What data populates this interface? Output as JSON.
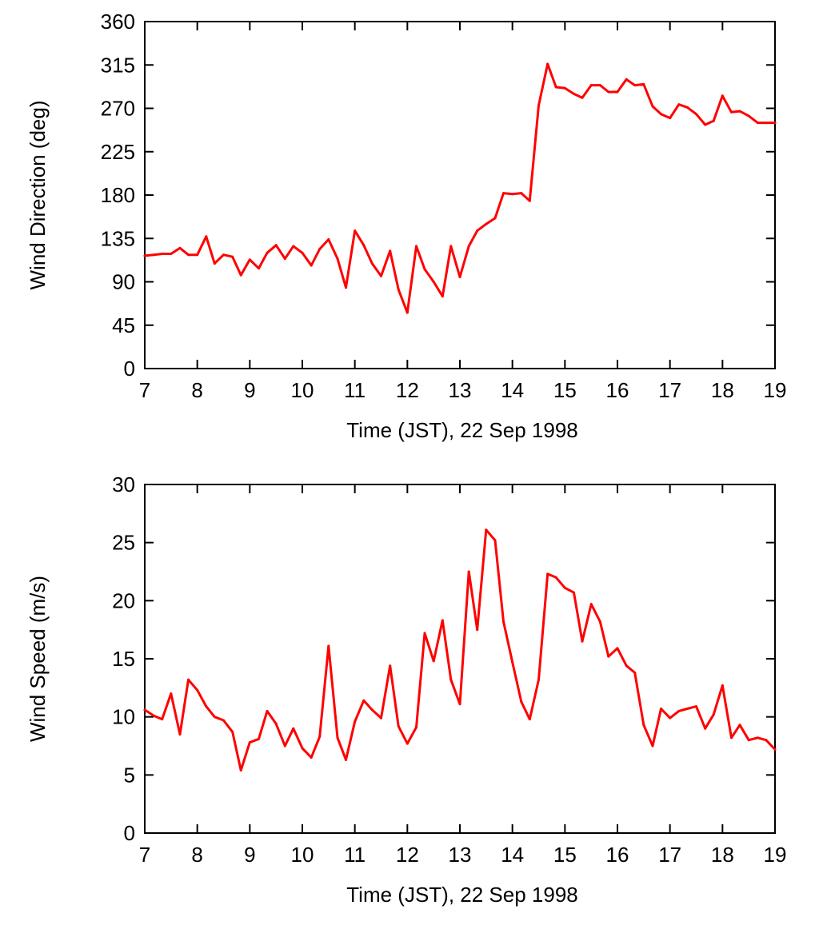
{
  "series_color": "#ff0000",
  "chart_data": [
    {
      "type": "line",
      "title": "",
      "xlabel": "Time (JST), 22 Sep 1998",
      "ylabel": "Wind Direction (deg)",
      "xlim": [
        7,
        19
      ],
      "ylim": [
        0,
        360
      ],
      "xticks": [
        7,
        8,
        9,
        10,
        11,
        12,
        13,
        14,
        15,
        16,
        17,
        18,
        19
      ],
      "yticks": [
        0,
        45,
        90,
        135,
        180,
        225,
        270,
        315,
        360
      ],
      "grid": false,
      "series": [
        {
          "name": "Wind Direction",
          "x": [
            7.0,
            7.17,
            7.33,
            7.5,
            7.67,
            7.83,
            8.0,
            8.17,
            8.33,
            8.5,
            8.67,
            8.83,
            9.0,
            9.17,
            9.33,
            9.5,
            9.67,
            9.83,
            10.0,
            10.17,
            10.33,
            10.5,
            10.67,
            10.83,
            11.0,
            11.17,
            11.33,
            11.5,
            11.67,
            11.83,
            12.0,
            12.17,
            12.33,
            12.5,
            12.67,
            12.83,
            13.0,
            13.17,
            13.33,
            13.5,
            13.67,
            13.83,
            14.0,
            14.17,
            14.33,
            14.5,
            14.67,
            14.83,
            15.0,
            15.17,
            15.33,
            15.5,
            15.67,
            15.83,
            16.0,
            16.17,
            16.33,
            16.5,
            16.67,
            16.83,
            17.0,
            17.17,
            17.33,
            17.5,
            17.67,
            17.83,
            18.0,
            18.17,
            18.33,
            18.5,
            18.67,
            18.83,
            19.0
          ],
          "values": [
            117,
            118,
            119,
            119,
            125,
            118,
            118,
            137,
            109,
            118,
            116,
            97,
            113,
            104,
            120,
            128,
            114,
            127,
            120,
            107,
            124,
            134,
            114,
            84,
            143,
            128,
            109,
            96,
            122,
            82,
            58,
            127,
            103,
            90,
            75,
            127,
            95,
            127,
            143,
            150,
            156,
            182,
            181,
            182,
            174,
            273,
            316,
            292,
            291,
            285,
            281,
            294,
            294,
            287,
            287,
            300,
            294,
            295,
            272,
            264,
            260,
            274,
            271,
            264,
            253,
            257,
            283,
            266,
            267,
            262,
            255,
            255,
            255
          ]
        }
      ]
    },
    {
      "type": "line",
      "title": "",
      "xlabel": "Time (JST), 22 Sep 1998",
      "ylabel": "Wind Speed (m/s)",
      "xlim": [
        7,
        19
      ],
      "ylim": [
        0,
        30
      ],
      "xticks": [
        7,
        8,
        9,
        10,
        11,
        12,
        13,
        14,
        15,
        16,
        17,
        18,
        19
      ],
      "yticks": [
        0,
        5,
        10,
        15,
        20,
        25,
        30
      ],
      "grid": false,
      "series": [
        {
          "name": "Wind Speed",
          "x": [
            7.0,
            7.17,
            7.33,
            7.5,
            7.67,
            7.83,
            8.0,
            8.17,
            8.33,
            8.5,
            8.67,
            8.83,
            9.0,
            9.17,
            9.33,
            9.5,
            9.67,
            9.83,
            10.0,
            10.17,
            10.33,
            10.5,
            10.67,
            10.83,
            11.0,
            11.17,
            11.33,
            11.5,
            11.67,
            11.83,
            12.0,
            12.17,
            12.33,
            12.5,
            12.67,
            12.83,
            13.0,
            13.17,
            13.33,
            13.5,
            13.67,
            13.83,
            14.0,
            14.17,
            14.33,
            14.5,
            14.67,
            14.83,
            15.0,
            15.17,
            15.33,
            15.5,
            15.67,
            15.83,
            16.0,
            16.17,
            16.33,
            16.5,
            16.67,
            16.83,
            17.0,
            17.17,
            17.33,
            17.5,
            17.67,
            17.83,
            18.0,
            18.17,
            18.33,
            18.5,
            18.67,
            18.83,
            19.0
          ],
          "values": [
            10.6,
            10.1,
            9.8,
            12.0,
            8.5,
            13.2,
            12.3,
            10.9,
            10.0,
            9.7,
            8.7,
            5.4,
            7.8,
            8.1,
            10.5,
            9.4,
            7.5,
            9.0,
            7.3,
            6.5,
            8.3,
            16.1,
            8.2,
            6.3,
            9.6,
            11.4,
            10.6,
            9.9,
            14.4,
            9.2,
            7.7,
            9.1,
            17.2,
            14.8,
            18.3,
            13.2,
            11.1,
            22.5,
            17.5,
            26.1,
            25.2,
            18.2,
            14.7,
            11.3,
            9.8,
            13.2,
            22.3,
            22.0,
            21.1,
            20.7,
            16.5,
            19.7,
            18.2,
            15.2,
            15.9,
            14.4,
            13.8,
            9.3,
            7.5,
            10.7,
            9.9,
            10.5,
            10.7,
            10.9,
            9.0,
            10.2,
            12.7,
            8.2,
            9.3,
            8.0,
            8.2,
            8.0,
            7.2
          ]
        }
      ]
    }
  ]
}
